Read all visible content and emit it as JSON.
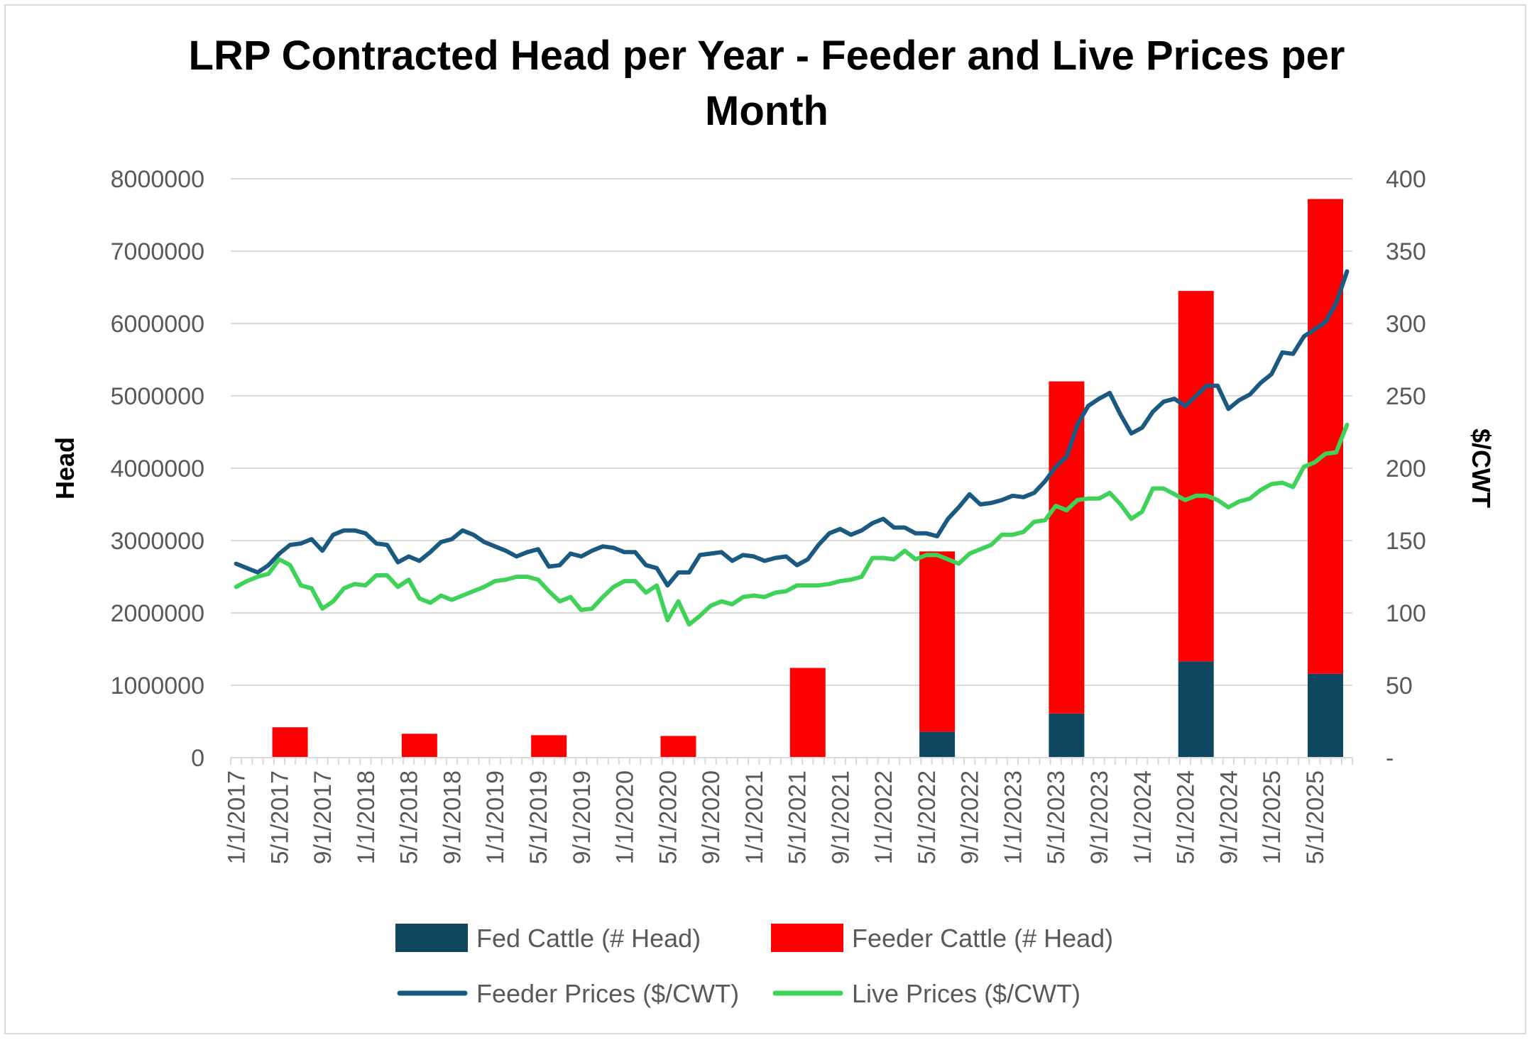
{
  "chart_data": {
    "type": "bar+line",
    "title_lines": [
      "LRP Contracted Head per Year - Feeder and Live Prices per",
      "Month"
    ],
    "y_left_label": "Head",
    "y_right_label": "$/CWT",
    "y_left_ticks": [
      "0",
      "1000000",
      "2000000",
      "3000000",
      "4000000",
      "5000000",
      "6000000",
      "7000000",
      "8000000"
    ],
    "y_right_ticks": [
      "-",
      "50",
      "100",
      "150",
      "200",
      "250",
      "300",
      "350",
      "400"
    ],
    "y_left_range": [
      0,
      8000000
    ],
    "y_right_range": [
      0,
      400
    ],
    "x_tick_labels": [
      "1/1/2017",
      "5/1/2017",
      "9/1/2017",
      "1/1/2018",
      "5/1/2018",
      "9/1/2018",
      "1/1/2019",
      "5/1/2019",
      "9/1/2019",
      "1/1/2020",
      "5/1/2020",
      "9/1/2020",
      "1/1/2021",
      "5/1/2021",
      "9/1/2021",
      "1/1/2022",
      "5/1/2022",
      "9/1/2022",
      "1/1/2023",
      "5/1/2023",
      "9/1/2023",
      "1/1/2024",
      "5/1/2024",
      "9/1/2024",
      "1/1/2025",
      "5/1/2025"
    ],
    "bars": [
      {
        "date": "6/1/2017",
        "fed": 0,
        "feeder": 420000
      },
      {
        "date": "6/1/2018",
        "fed": 0,
        "feeder": 330000
      },
      {
        "date": "6/1/2019",
        "fed": 0,
        "feeder": 310000
      },
      {
        "date": "6/1/2020",
        "fed": 0,
        "feeder": 300000
      },
      {
        "date": "6/1/2021",
        "fed": 0,
        "feeder": 1240000
      },
      {
        "date": "6/1/2022",
        "fed": 360000,
        "feeder": 2490000
      },
      {
        "date": "6/1/2023",
        "fed": 610000,
        "feeder": 4590000
      },
      {
        "date": "6/1/2024",
        "fed": 1330000,
        "feeder": 5120000
      },
      {
        "date": "6/1/2025",
        "fed": 1160000,
        "feeder": 6560000
      }
    ],
    "series": [
      {
        "name": "Feeder Prices ($/CWT)",
        "color": "#1b5a80",
        "values": [
          134,
          131,
          128,
          133,
          141,
          147,
          148,
          151,
          143,
          154,
          157,
          157,
          155,
          148,
          147,
          135,
          139,
          136,
          142,
          149,
          151,
          157,
          154,
          149,
          146,
          143,
          139,
          142,
          144,
          132,
          133,
          141,
          139,
          143,
          146,
          145,
          142,
          142,
          133,
          131,
          119,
          128,
          128,
          140,
          141,
          142,
          136,
          140,
          139,
          136,
          138,
          139,
          133,
          137,
          147,
          155,
          158,
          154,
          157,
          162,
          165,
          159,
          159,
          155,
          155,
          153,
          165,
          173,
          182,
          175,
          176,
          178,
          181,
          180,
          183,
          191,
          201,
          208,
          230,
          243,
          248,
          252,
          237,
          224,
          228,
          239,
          246,
          248,
          243,
          250,
          257,
          257,
          241,
          247,
          251,
          259,
          265,
          280,
          279,
          291,
          296,
          301,
          314,
          336
        ]
      },
      {
        "name": "Live Prices ($/CWT)",
        "color": "#3fd259",
        "values": [
          118,
          122,
          125,
          127,
          137,
          133,
          119,
          117,
          103,
          108,
          117,
          120,
          119,
          126,
          126,
          118,
          123,
          110,
          107,
          112,
          109,
          112,
          115,
          118,
          122,
          123,
          125,
          125,
          123,
          115,
          108,
          111,
          102,
          103,
          111,
          118,
          122,
          122,
          114,
          119,
          95,
          108,
          92,
          98,
          105,
          108,
          106,
          111,
          112,
          111,
          114,
          115,
          119,
          119,
          119,
          120,
          122,
          123,
          125,
          138,
          138,
          137,
          143,
          137,
          140,
          140,
          137,
          134,
          141,
          144,
          147,
          154,
          154,
          156,
          163,
          164,
          174,
          171,
          178,
          179,
          179,
          183,
          175,
          165,
          170,
          186,
          186,
          182,
          178,
          181,
          181,
          178,
          173,
          177,
          179,
          185,
          189,
          190,
          187,
          201,
          204,
          210,
          211,
          230
        ]
      }
    ],
    "legend": [
      {
        "name": "Fed Cattle (# Head)",
        "kind": "bar",
        "color": "#0f4761"
      },
      {
        "name": "Feeder Cattle (# Head)",
        "kind": "bar",
        "color": "#ff0000"
      },
      {
        "name": "Feeder Prices ($/CWT)",
        "kind": "line",
        "color": "#1b5a80"
      },
      {
        "name": "Live Prices ($/CWT)",
        "kind": "line",
        "color": "#3fd259"
      }
    ],
    "legend_position": "bottom",
    "gridlines": true
  }
}
